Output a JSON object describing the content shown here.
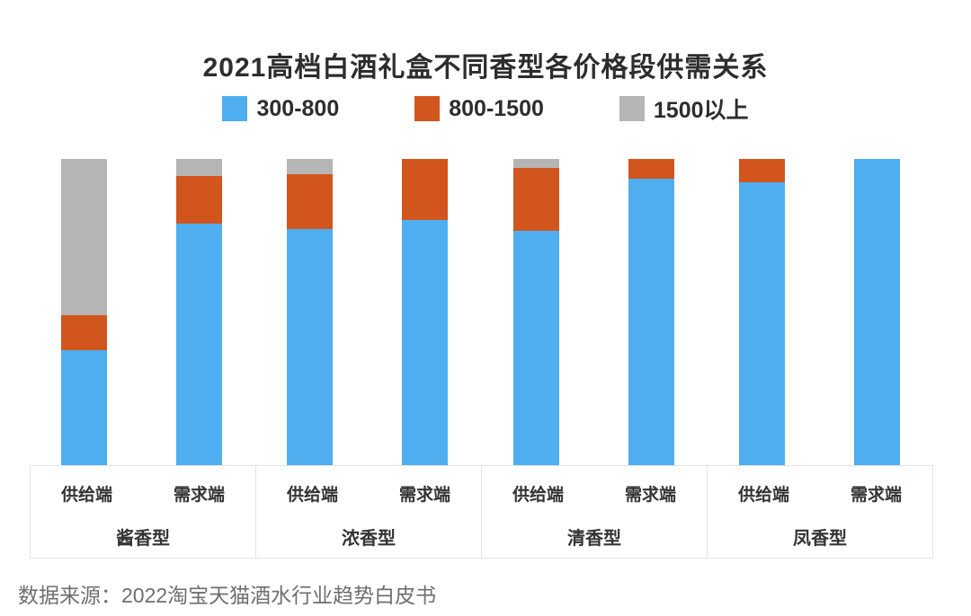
{
  "title": "2021高档白酒礼盒不同香型各价格段供需关系",
  "legend": {
    "items": [
      {
        "label": "300-800",
        "color": "#4FAEF0"
      },
      {
        "label": "800-1500",
        "color": "#D3551E"
      },
      {
        "label": "1500以上",
        "color": "#B5B5B5"
      }
    ]
  },
  "axis": {
    "bar_labels": [
      "供给端",
      "需求端"
    ],
    "groups": [
      "酱香型",
      "浓香型",
      "清香型",
      "凤香型"
    ]
  },
  "source": "数据来源：2022淘宝天猫酒水行业趋势白皮书",
  "chart_data": {
    "type": "bar",
    "stacked": true,
    "percent": true,
    "title": "2021高档白酒礼盒不同香型各价格段供需关系",
    "groups": [
      "酱香型",
      "浓香型",
      "清香型",
      "凤香型"
    ],
    "bar_labels": [
      "供给端",
      "需求端"
    ],
    "categories": [
      "酱香型-供给端",
      "酱香型-需求端",
      "浓香型-供给端",
      "浓香型-需求端",
      "清香型-供给端",
      "清香型-需求端",
      "凤香型-供给端",
      "凤香型-需求端"
    ],
    "series": [
      {
        "name": "300-800",
        "color": "#4FAEF0",
        "values": [
          37.5,
          79.0,
          77.0,
          80.0,
          76.5,
          93.5,
          92.5,
          100.0
        ]
      },
      {
        "name": "800-1500",
        "color": "#D3551E",
        "values": [
          11.5,
          15.5,
          18.0,
          20.0,
          20.5,
          6.5,
          7.5,
          0.0
        ]
      },
      {
        "name": "1500以上",
        "color": "#B5B5B5",
        "values": [
          51.0,
          5.5,
          5.0,
          0.0,
          3.0,
          0.0,
          0.0,
          0.0
        ]
      }
    ],
    "ylim": [
      0,
      100
    ],
    "grid": false,
    "y_axis_visible": false,
    "legend_position": "top"
  }
}
